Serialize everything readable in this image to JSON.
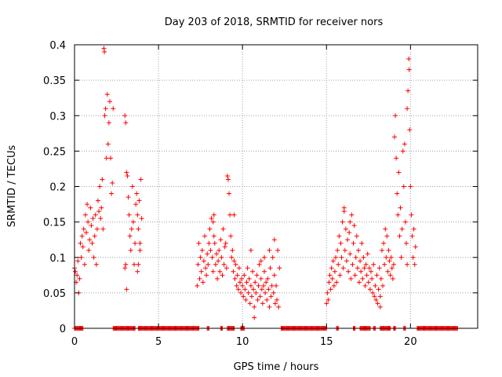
{
  "chart_data": {
    "type": "scatter",
    "title": "Day 203 of 2018, SRMTID for receiver nors",
    "xlabel": "GPS time / hours",
    "ylabel": "SRMTID / TECUs",
    "xlim": [
      0,
      24
    ],
    "ylim": [
      0,
      0.4
    ],
    "xticks": [
      0,
      5,
      10,
      15,
      20
    ],
    "yticks": [
      0,
      0.05,
      0.1,
      0.15,
      0.2,
      0.25,
      0.3,
      0.35,
      0.4
    ],
    "xtick_labels": [
      "0",
      "5",
      "10",
      "15",
      "20"
    ],
    "ytick_labels": [
      "0",
      "0.05",
      "0.1",
      "0.15",
      "0.2",
      "0.25",
      "0.3",
      "0.35",
      "0.4"
    ],
    "grid": true,
    "marker": "+",
    "color": "#ff0000",
    "series": [
      {
        "name": "nors",
        "points": [
          [
            0.0,
            0.085
          ],
          [
            0.05,
            0.08
          ],
          [
            0.1,
            0.065
          ],
          [
            0.15,
            0.075
          ],
          [
            0.2,
            0.095
          ],
          [
            0.25,
            0.05
          ],
          [
            0.3,
            0.07
          ],
          [
            0.35,
            0.12
          ],
          [
            0.4,
            0.1
          ],
          [
            0.45,
            0.13
          ],
          [
            0.5,
            0.115
          ],
          [
            0.55,
            0.14
          ],
          [
            0.6,
            0.09
          ],
          [
            0.65,
            0.16
          ],
          [
            0.7,
            0.135
          ],
          [
            0.75,
            0.175
          ],
          [
            0.8,
            0.15
          ],
          [
            0.85,
            0.11
          ],
          [
            0.9,
            0.125
          ],
          [
            0.95,
            0.17
          ],
          [
            1.0,
            0.145
          ],
          [
            1.05,
            0.12
          ],
          [
            1.1,
            0.155
          ],
          [
            1.15,
            0.1
          ],
          [
            1.2,
            0.13
          ],
          [
            1.25,
            0.16
          ],
          [
            1.3,
            0.09
          ],
          [
            1.35,
            0.14
          ],
          [
            1.4,
            0.18
          ],
          [
            1.45,
            0.165
          ],
          [
            1.5,
            0.2
          ],
          [
            1.55,
            0.155
          ],
          [
            1.6,
            0.17
          ],
          [
            1.65,
            0.21
          ],
          [
            1.7,
            0.14
          ],
          [
            1.75,
            0.395
          ],
          [
            1.78,
            0.39
          ],
          [
            1.8,
            0.3
          ],
          [
            1.85,
            0.31
          ],
          [
            1.9,
            0.24
          ],
          [
            1.95,
            0.33
          ],
          [
            2.0,
            0.26
          ],
          [
            2.05,
            0.29
          ],
          [
            2.1,
            0.32
          ],
          [
            2.15,
            0.24
          ],
          [
            2.2,
            0.19
          ],
          [
            2.25,
            0.205
          ],
          [
            2.3,
            0.31
          ],
          [
            3.0,
            0.3
          ],
          [
            3.05,
            0.29
          ],
          [
            3.1,
            0.22
          ],
          [
            3.15,
            0.215
          ],
          [
            3.2,
            0.185
          ],
          [
            3.25,
            0.16
          ],
          [
            3.3,
            0.13
          ],
          [
            3.35,
            0.11
          ],
          [
            3.4,
            0.14
          ],
          [
            3.45,
            0.2
          ],
          [
            3.5,
            0.15
          ],
          [
            3.55,
            0.09
          ],
          [
            3.6,
            0.12
          ],
          [
            3.65,
            0.175
          ],
          [
            3.7,
            0.19
          ],
          [
            3.75,
            0.16
          ],
          [
            3.8,
            0.14
          ],
          [
            3.85,
            0.18
          ],
          [
            3.9,
            0.11
          ],
          [
            3.95,
            0.21
          ],
          [
            4.0,
            0.155
          ],
          [
            3.0,
            0.085
          ],
          [
            3.05,
            0.09
          ],
          [
            3.1,
            0.055
          ],
          [
            3.75,
            0.08
          ],
          [
            3.8,
            0.09
          ],
          [
            3.9,
            0.12
          ],
          [
            7.3,
            0.06
          ],
          [
            7.35,
            0.09
          ],
          [
            7.4,
            0.12
          ],
          [
            7.45,
            0.07
          ],
          [
            7.5,
            0.1
          ],
          [
            7.55,
            0.08
          ],
          [
            7.6,
            0.11
          ],
          [
            7.65,
            0.065
          ],
          [
            7.7,
            0.095
          ],
          [
            7.75,
            0.13
          ],
          [
            7.8,
            0.085
          ],
          [
            7.85,
            0.075
          ],
          [
            7.9,
            0.105
          ],
          [
            7.95,
            0.09
          ],
          [
            8.0,
            0.12
          ],
          [
            8.05,
            0.14
          ],
          [
            8.1,
            0.11
          ],
          [
            8.15,
            0.155
          ],
          [
            8.2,
            0.1
          ],
          [
            8.25,
            0.08
          ],
          [
            8.3,
            0.13
          ],
          [
            8.35,
            0.12
          ],
          [
            8.4,
            0.09
          ],
          [
            8.45,
            0.105
          ],
          [
            8.5,
            0.07
          ],
          [
            8.55,
            0.095
          ],
          [
            8.6,
            0.11
          ],
          [
            8.65,
            0.08
          ],
          [
            8.7,
            0.125
          ],
          [
            8.75,
            0.1
          ],
          [
            8.8,
            0.075
          ],
          [
            8.85,
            0.14
          ],
          [
            8.9,
            0.09
          ],
          [
            8.95,
            0.115
          ],
          [
            9.0,
            0.12
          ],
          [
            9.05,
            0.085
          ],
          [
            9.1,
            0.215
          ],
          [
            9.15,
            0.21
          ],
          [
            9.2,
            0.19
          ],
          [
            9.25,
            0.16
          ],
          [
            9.3,
            0.13
          ],
          [
            9.35,
            0.1
          ],
          [
            9.4,
            0.11
          ],
          [
            9.45,
            0.08
          ],
          [
            9.5,
            0.095
          ],
          [
            9.55,
            0.07
          ],
          [
            9.6,
            0.09
          ],
          [
            9.65,
            0.06
          ],
          [
            9.7,
            0.075
          ],
          [
            9.75,
            0.055
          ],
          [
            9.8,
            0.085
          ],
          [
            9.85,
            0.065
          ],
          [
            9.9,
            0.05
          ],
          [
            9.95,
            0.07
          ],
          [
            10.0,
            0.06
          ],
          [
            10.05,
            0.045
          ],
          [
            10.1,
            0.075
          ],
          [
            10.15,
            0.055
          ],
          [
            10.2,
            0.04
          ],
          [
            10.25,
            0.065
          ],
          [
            10.3,
            0.085
          ],
          [
            10.35,
            0.05
          ],
          [
            10.4,
            0.07
          ],
          [
            10.45,
            0.035
          ],
          [
            10.5,
            0.06
          ],
          [
            10.55,
            0.045
          ],
          [
            10.6,
            0.08
          ],
          [
            10.65,
            0.055
          ],
          [
            10.7,
            0.03
          ],
          [
            10.75,
            0.065
          ],
          [
            10.8,
            0.05
          ],
          [
            10.85,
            0.075
          ],
          [
            10.9,
            0.04
          ],
          [
            10.95,
            0.06
          ],
          [
            11.0,
            0.09
          ],
          [
            11.05,
            0.045
          ],
          [
            11.1,
            0.07
          ],
          [
            11.15,
            0.055
          ],
          [
            11.2,
            0.035
          ],
          [
            11.25,
            0.06
          ],
          [
            11.3,
            0.08
          ],
          [
            11.35,
            0.05
          ],
          [
            11.4,
            0.065
          ],
          [
            11.45,
            0.04
          ],
          [
            11.5,
            0.07
          ],
          [
            11.55,
            0.055
          ],
          [
            11.6,
            0.03
          ],
          [
            11.65,
            0.085
          ],
          [
            11.7,
            0.045
          ],
          [
            11.75,
            0.06
          ],
          [
            11.8,
            0.1
          ],
          [
            11.85,
            0.05
          ],
          [
            11.9,
            0.075
          ],
          [
            11.95,
            0.035
          ],
          [
            12.0,
            0.06
          ],
          [
            12.05,
            0.04
          ],
          [
            12.1,
            0.11
          ],
          [
            12.15,
            0.03
          ],
          [
            8.3,
            0.16
          ],
          [
            8.25,
            0.15
          ],
          [
            9.5,
            0.16
          ],
          [
            10.7,
            0.015
          ],
          [
            10.5,
            0.11
          ],
          [
            11.1,
            0.095
          ],
          [
            11.3,
            0.1
          ],
          [
            11.6,
            0.11
          ],
          [
            11.9,
            0.125
          ],
          [
            12.2,
            0.085
          ],
          [
            15.0,
            0.035
          ],
          [
            15.05,
            0.05
          ],
          [
            15.1,
            0.04
          ],
          [
            15.15,
            0.065
          ],
          [
            15.2,
            0.075
          ],
          [
            15.25,
            0.055
          ],
          [
            15.3,
            0.085
          ],
          [
            15.35,
            0.07
          ],
          [
            15.4,
            0.095
          ],
          [
            15.45,
            0.06
          ],
          [
            15.5,
            0.08
          ],
          [
            15.55,
            0.1
          ],
          [
            15.6,
            0.065
          ],
          [
            15.65,
            0.11
          ],
          [
            15.7,
            0.09
          ],
          [
            15.75,
            0.13
          ],
          [
            15.8,
            0.075
          ],
          [
            15.85,
            0.12
          ],
          [
            15.9,
            0.1
          ],
          [
            15.95,
            0.15
          ],
          [
            16.0,
            0.085
          ],
          [
            16.05,
            0.165
          ],
          [
            16.1,
            0.11
          ],
          [
            16.15,
            0.14
          ],
          [
            16.2,
            0.095
          ],
          [
            16.25,
            0.125
          ],
          [
            16.3,
            0.08
          ],
          [
            16.35,
            0.135
          ],
          [
            16.4,
            0.105
          ],
          [
            16.45,
            0.07
          ],
          [
            16.5,
            0.16
          ],
          [
            16.55,
            0.09
          ],
          [
            16.6,
            0.12
          ],
          [
            16.65,
            0.145
          ],
          [
            16.7,
            0.075
          ],
          [
            16.75,
            0.1
          ],
          [
            16.8,
            0.13
          ],
          [
            16.85,
            0.085
          ],
          [
            16.9,
            0.11
          ],
          [
            16.95,
            0.065
          ],
          [
            17.0,
            0.095
          ],
          [
            17.05,
            0.08
          ],
          [
            17.1,
            0.12
          ],
          [
            17.15,
            0.07
          ],
          [
            17.2,
            0.1
          ],
          [
            17.25,
            0.085
          ],
          [
            17.3,
            0.06
          ],
          [
            17.35,
            0.09
          ],
          [
            17.4,
            0.075
          ],
          [
            17.45,
            0.105
          ],
          [
            17.5,
            0.065
          ],
          [
            17.55,
            0.085
          ],
          [
            17.6,
            0.055
          ],
          [
            17.65,
            0.08
          ],
          [
            17.7,
            0.07
          ],
          [
            17.75,
            0.05
          ],
          [
            17.8,
            0.09
          ],
          [
            17.85,
            0.045
          ],
          [
            17.9,
            0.06
          ],
          [
            17.95,
            0.04
          ],
          [
            18.0,
            0.075
          ],
          [
            18.05,
            0.035
          ],
          [
            18.1,
            0.055
          ],
          [
            18.15,
            0.085
          ],
          [
            18.2,
            0.045
          ],
          [
            18.25,
            0.07
          ],
          [
            18.3,
            0.11
          ],
          [
            18.35,
            0.06
          ],
          [
            18.4,
            0.12
          ],
          [
            18.45,
            0.09
          ],
          [
            18.5,
            0.14
          ],
          [
            18.55,
            0.1
          ],
          [
            18.6,
            0.13
          ],
          [
            18.65,
            0.08
          ],
          [
            18.7,
            0.11
          ],
          [
            18.75,
            0.095
          ],
          [
            18.8,
            0.075
          ],
          [
            18.85,
            0.1
          ],
          [
            18.9,
            0.085
          ],
          [
            18.95,
            0.07
          ],
          [
            19.0,
            0.09
          ],
          [
            19.05,
            0.27
          ],
          [
            19.1,
            0.3
          ],
          [
            19.15,
            0.24
          ],
          [
            19.2,
            0.19
          ],
          [
            19.25,
            0.16
          ],
          [
            19.3,
            0.22
          ],
          [
            19.35,
            0.13
          ],
          [
            19.4,
            0.17
          ],
          [
            19.45,
            0.1
          ],
          [
            19.5,
            0.14
          ],
          [
            19.55,
            0.25
          ],
          [
            19.6,
            0.2
          ],
          [
            19.65,
            0.26
          ],
          [
            19.7,
            0.15
          ],
          [
            19.75,
            0.12
          ],
          [
            19.8,
            0.31
          ],
          [
            19.85,
            0.335
          ],
          [
            19.9,
            0.38
          ],
          [
            19.92,
            0.365
          ],
          [
            19.95,
            0.28
          ],
          [
            20.0,
            0.2
          ],
          [
            20.05,
            0.16
          ],
          [
            20.1,
            0.13
          ],
          [
            20.15,
            0.1
          ],
          [
            20.2,
            0.14
          ],
          [
            20.25,
            0.09
          ],
          [
            20.3,
            0.115
          ],
          [
            16.05,
            0.17
          ],
          [
            16.4,
            0.15
          ],
          [
            18.2,
            0.03
          ],
          [
            19.8,
            0.09
          ]
        ]
      }
    ],
    "zero_segments": [
      [
        0.0,
        0.5
      ],
      [
        2.3,
        3.6
      ],
      [
        3.8,
        7.4
      ],
      [
        7.9,
        8.0
      ],
      [
        8.7,
        8.8
      ],
      [
        9.1,
        9.5
      ],
      [
        9.9,
        10.1
      ],
      [
        12.3,
        15.0
      ],
      [
        15.6,
        15.7
      ],
      [
        16.6,
        16.7
      ],
      [
        17.0,
        17.6
      ],
      [
        17.8,
        17.9
      ],
      [
        18.2,
        18.8
      ],
      [
        19.0,
        19.1
      ],
      [
        19.6,
        19.7
      ],
      [
        20.4,
        22.8
      ]
    ]
  }
}
